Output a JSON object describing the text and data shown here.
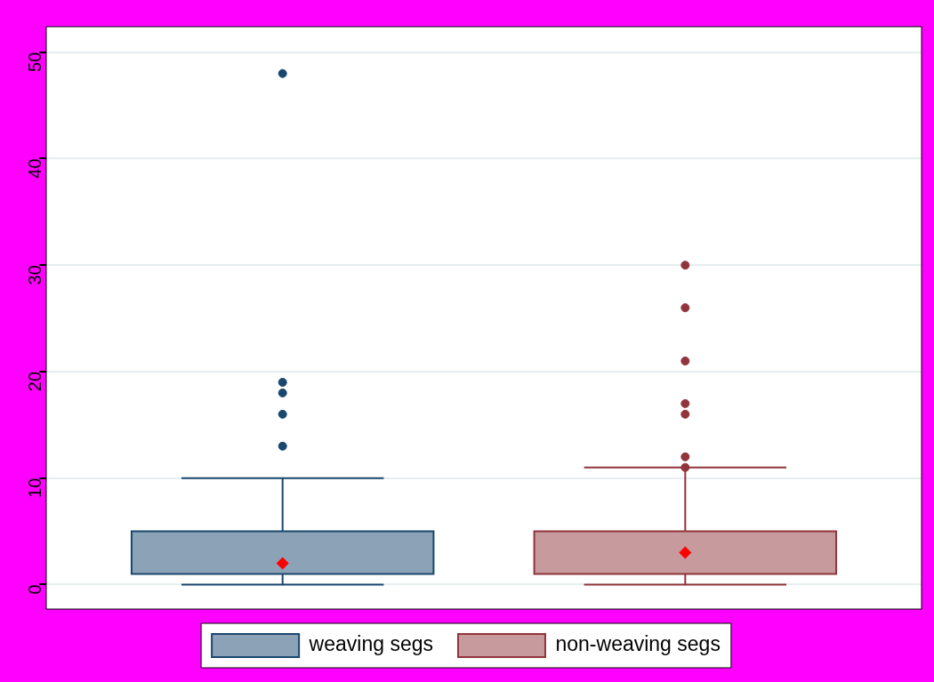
{
  "chart_data": {
    "type": "box",
    "categories": [
      null
    ],
    "series": [
      {
        "name": "weaving segs",
        "color": "#1a476f",
        "boxes": [
          {
            "low": 0,
            "q1": 1,
            "median": 2,
            "q3": 5,
            "high": 10,
            "outliers": [
              13,
              16,
              18,
              19,
              48
            ]
          }
        ]
      },
      {
        "name": "non-weaving segs",
        "color": "#90353b",
        "boxes": [
          {
            "low": 0,
            "q1": 1,
            "median": 3,
            "q3": 5,
            "high": 11,
            "outliers": [
              11,
              12,
              16,
              17,
              21,
              26,
              30
            ]
          }
        ]
      }
    ],
    "ylim": [
      -2.3,
      52.4
    ],
    "yticks": [
      0,
      10,
      20,
      30,
      40,
      50
    ],
    "grid": "y",
    "legend": "bottom",
    "marker": "circle"
  }
}
